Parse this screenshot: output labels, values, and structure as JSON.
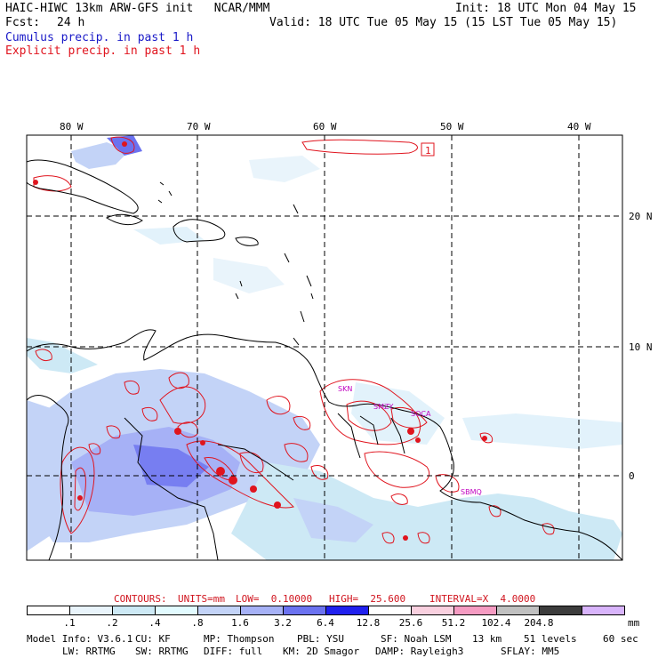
{
  "header": {
    "title": "HAIC-HIWC 13km ARW-GFS init   NCAR/MMM",
    "init": "Init: 18 UTC Mon 04 May 15",
    "fcst_label": "Fcst:",
    "fcst_value": "24 h",
    "valid": "Valid: 18 UTC Tue 05 May 15 (15 LST Tue 05 May 15)",
    "cumulus": "Cumulus precip. in past 1 h",
    "explicit": "Explicit precip. in past 1 h"
  },
  "map": {
    "lon_labels": [
      "80 W",
      "70 W",
      "60 W",
      "50 W",
      "40 W"
    ],
    "lat_labels": [
      "20 N",
      "10 N",
      "0"
    ],
    "stations": [
      "SKN",
      "SMZY",
      "SOCA",
      "SBMQ"
    ],
    "contour_max_label": "1",
    "colors": {
      "coast": "#000000",
      "explicit": "#e0141e",
      "station": "#c000c0"
    }
  },
  "contours": {
    "label": "CONTOURS:",
    "units": "UNITS=mm",
    "low": "LOW=  0.10000",
    "high": "HIGH=  25.600",
    "interval": "INTERVAL=X  4.0000"
  },
  "colorbar": {
    "unit": "mm",
    "ticks": [
      ".1",
      ".2",
      ".4",
      ".8",
      "1.6",
      "3.2",
      "6.4",
      "12.8",
      "25.6",
      "51.2",
      "102.4",
      "204.8"
    ],
    "colors": [
      "#ffffff",
      "#e9f4fb",
      "#cde9f5",
      "#e2fbff",
      "#c3d3f7",
      "#a6b1f6",
      "#6b72f0",
      "#2020ee",
      "#ffffff",
      "#f9d0df",
      "#f59bc2",
      "#c0c0c0",
      "#3c3c3c",
      "#d8b4fb"
    ]
  },
  "footer": {
    "line1": [
      "Model Info: V3.6.1",
      "CU: KF",
      "MP: Thompson",
      "PBL: YSU",
      "SF: Noah LSM",
      "13 km",
      "51 levels",
      "60 sec"
    ],
    "line2": [
      "LW: RRTMG",
      "SW: RRTMG",
      "DIFF: full",
      "KM: 2D Smagor",
      "DAMP: Rayleigh3",
      "SFLAY: MM5"
    ]
  }
}
